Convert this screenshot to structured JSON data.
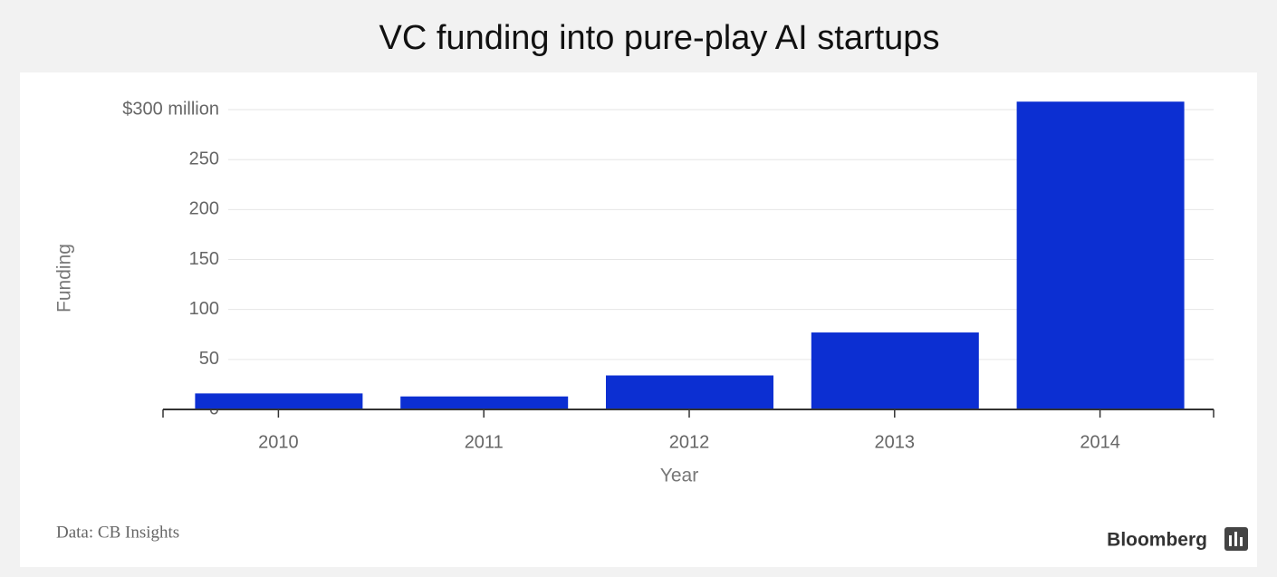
{
  "chart_data": {
    "type": "bar",
    "title": "VC funding into pure-play AI startups",
    "categories": [
      "2010",
      "2011",
      "2012",
      "2013",
      "2014"
    ],
    "values": [
      16,
      13,
      34,
      77,
      308
    ],
    "color": "#0c2fd2",
    "ylim": [
      0,
      310
    ],
    "yticks": [
      0,
      50,
      100,
      150,
      200,
      250,
      {
        "value": 300,
        "label": "$300 million"
      }
    ],
    "grid": true,
    "x_label": "Year",
    "y_label": "Funding",
    "source": "Data: CB Insights",
    "brand": "Bloomberg"
  }
}
